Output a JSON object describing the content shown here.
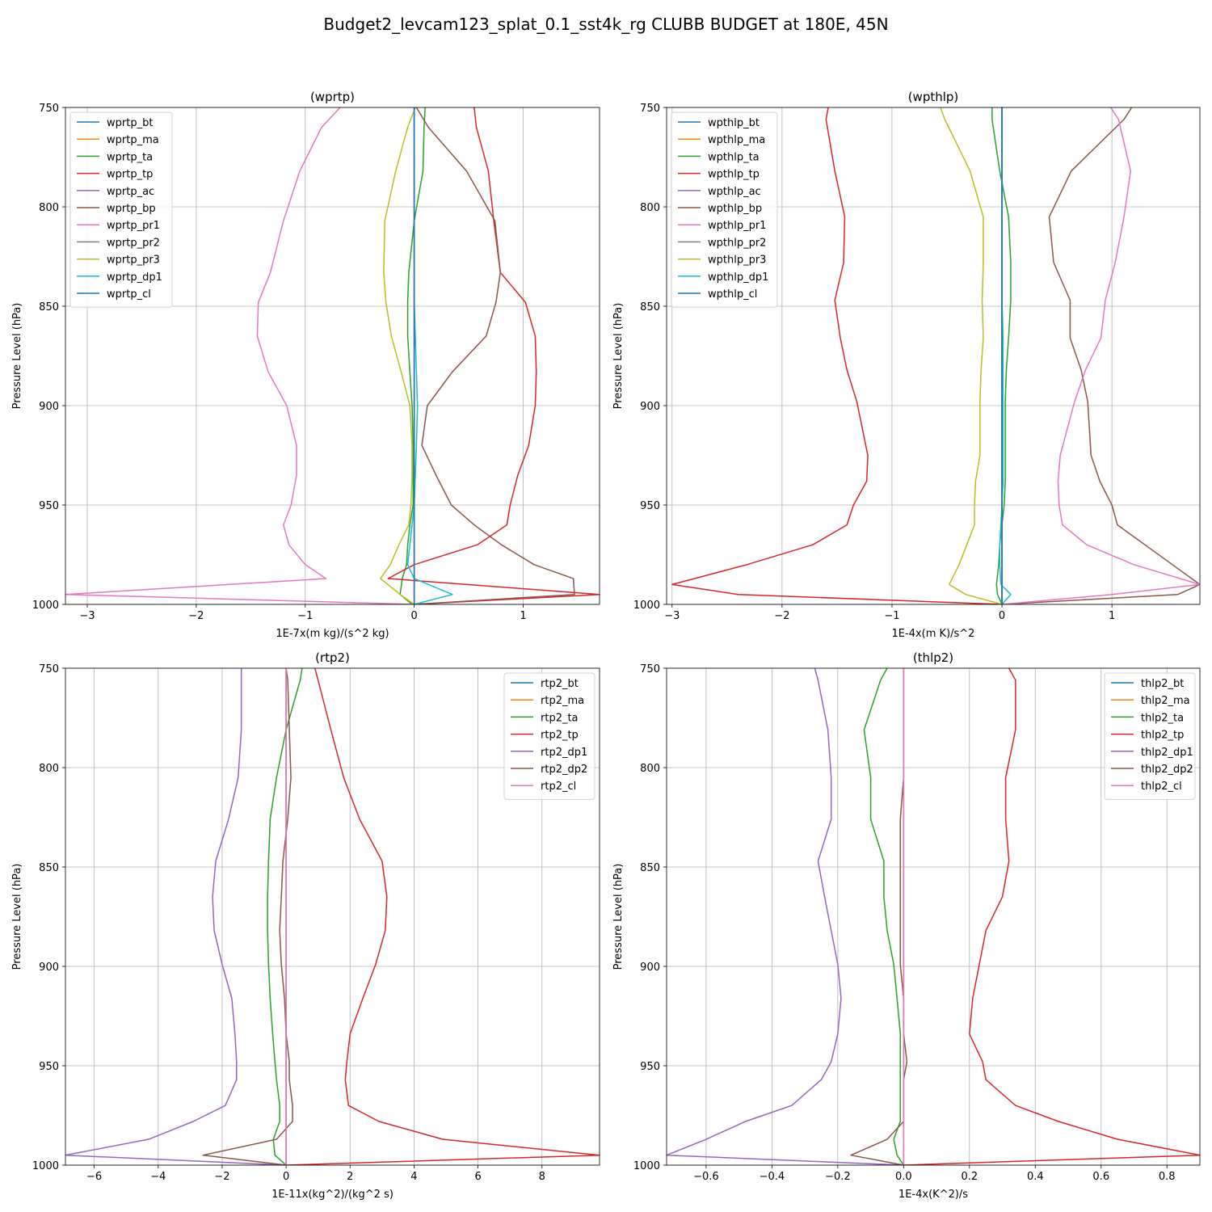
{
  "figure": {
    "suptitle": "Budget2_levcam123_splat_0.1_sst4k_rg CLUBB BUDGET at 180E, 45N",
    "colors": [
      "#1f77b4",
      "#ff7f0e",
      "#2ca02c",
      "#d62728",
      "#9467bd",
      "#8c564b",
      "#e377c2",
      "#7f7f7f",
      "#bcbd22",
      "#17becf"
    ]
  },
  "chart_data": [
    {
      "type": "line",
      "title": "(wprtp)",
      "xlabel": "1E-7x(m kg)/(s^2 kg)",
      "ylabel": "Pressure Level (hPa)",
      "xlim": [
        -3.2,
        1.7
      ],
      "ylim": [
        1000,
        750
      ],
      "xticks": [
        -3,
        -2,
        -1,
        0,
        1
      ],
      "xticklabels": [
        "−3",
        "−2",
        "−1",
        "0",
        "1"
      ],
      "yticks": [
        750,
        800,
        850,
        900,
        950,
        1000
      ],
      "grid": true,
      "legend_position": "top-left",
      "y": [
        750,
        760,
        782,
        807,
        833,
        848,
        865,
        883,
        900,
        920,
        935,
        950,
        960,
        970,
        980,
        987,
        995,
        1000
      ],
      "series": [
        {
          "name": "wprtp_bt",
          "color": "#1f77b4",
          "values": [
            0,
            0,
            0,
            0,
            0,
            0,
            0,
            0,
            0,
            0,
            0,
            0,
            0,
            0,
            0,
            0,
            0,
            0
          ]
        },
        {
          "name": "wprtp_ma",
          "color": "#ff7f0e",
          "values": [
            0,
            0,
            0,
            0,
            0,
            0,
            0,
            0,
            0,
            0,
            0,
            0,
            0,
            0,
            0,
            0,
            0,
            0
          ]
        },
        {
          "name": "wprtp_ta",
          "color": "#2ca02c",
          "values": [
            0.1,
            0.09,
            0.08,
            0.0,
            -0.05,
            -0.06,
            -0.06,
            -0.04,
            -0.02,
            -0.01,
            -0.01,
            -0.01,
            -0.04,
            -0.06,
            -0.07,
            -0.11,
            -0.13,
            -0.02
          ]
        },
        {
          "name": "wprtp_tp",
          "color": "#d62728",
          "values": [
            0.55,
            0.57,
            0.68,
            0.73,
            0.79,
            1.02,
            1.11,
            1.12,
            1.11,
            1.05,
            0.95,
            0.88,
            0.85,
            0.58,
            0.0,
            -0.24,
            1.7,
            0.0
          ]
        },
        {
          "name": "wprtp_ac",
          "color": "#9467bd",
          "values": [
            0,
            0,
            0,
            0,
            0,
            0,
            0,
            0,
            0,
            0,
            0,
            0,
            0,
            0,
            0,
            0,
            0,
            0
          ]
        },
        {
          "name": "wprtp_bp",
          "color": "#8c564b",
          "values": [
            0.02,
            0.13,
            0.48,
            0.74,
            0.79,
            0.75,
            0.66,
            0.35,
            0.12,
            0.07,
            0.2,
            0.34,
            0.55,
            0.8,
            1.1,
            1.46,
            1.47,
            0.0
          ]
        },
        {
          "name": "wprtp_pr1",
          "color": "#e377c2",
          "values": [
            -0.68,
            -0.85,
            -1.05,
            -1.2,
            -1.32,
            -1.43,
            -1.44,
            -1.34,
            -1.17,
            -1.08,
            -1.08,
            -1.13,
            -1.2,
            -1.15,
            -1.0,
            -0.81,
            -3.2,
            0.0
          ]
        },
        {
          "name": "wprtp_pr2",
          "color": "#7f7f7f",
          "values": [
            0,
            0,
            0,
            0,
            0,
            0,
            0,
            0,
            0,
            0,
            0,
            0,
            0,
            0,
            0,
            0,
            0,
            0
          ]
        },
        {
          "name": "wprtp_pr3",
          "color": "#bcbd22",
          "values": [
            0.01,
            -0.06,
            -0.17,
            -0.27,
            -0.28,
            -0.26,
            -0.21,
            -0.12,
            -0.04,
            -0.02,
            -0.02,
            -0.03,
            -0.05,
            -0.14,
            -0.22,
            -0.31,
            -0.13,
            0.0
          ]
        },
        {
          "name": "wprtp_dp1",
          "color": "#17becf",
          "values": [
            0.0,
            0.0,
            0.0,
            0.0,
            0.0,
            0.0,
            0.01,
            0.02,
            0.03,
            0.02,
            0.01,
            0.0,
            -0.02,
            -0.04,
            -0.06,
            0.0,
            0.35,
            0.0
          ]
        },
        {
          "name": "wprtp_cl",
          "color": "#1f77b4",
          "values": [
            0,
            0,
            0,
            0,
            0,
            0,
            0,
            0,
            0,
            0,
            0,
            0,
            0,
            0,
            0,
            0,
            0,
            0
          ]
        }
      ]
    },
    {
      "type": "line",
      "title": "(wpthlp)",
      "xlabel": "1E-4x(m K)/s^2",
      "ylabel": "Pressure Level (hPa)",
      "xlim": [
        -3.05,
        1.8
      ],
      "ylim": [
        1000,
        750
      ],
      "xticks": [
        -3,
        -2,
        -1,
        0,
        1
      ],
      "xticklabels": [
        "−3",
        "−2",
        "−1",
        "0",
        "1"
      ],
      "yticks": [
        750,
        800,
        850,
        900,
        950,
        1000
      ],
      "grid": true,
      "legend_position": "top-left",
      "y": [
        750,
        756,
        782,
        805,
        828,
        847,
        866,
        882,
        898,
        925,
        938,
        950,
        960,
        970,
        980,
        990,
        995,
        1000
      ],
      "series": [
        {
          "name": "wpthlp_bt",
          "color": "#1f77b4",
          "values": [
            0,
            0,
            0,
            0,
            0,
            0,
            0,
            0,
            0,
            0,
            0,
            0,
            0,
            0,
            0,
            0,
            0,
            0
          ]
        },
        {
          "name": "wpthlp_ma",
          "color": "#ff7f0e",
          "values": [
            0,
            0,
            0,
            0,
            0,
            0,
            0,
            0,
            0,
            0,
            0,
            0,
            0,
            0,
            0,
            0,
            0,
            0
          ]
        },
        {
          "name": "wpthlp_ta",
          "color": "#2ca02c",
          "values": [
            -0.09,
            -0.09,
            -0.02,
            0.06,
            0.08,
            0.08,
            0.06,
            0.04,
            0.03,
            0.03,
            0.03,
            0.02,
            0.0,
            -0.02,
            -0.03,
            -0.05,
            -0.04,
            0.0
          ]
        },
        {
          "name": "wpthlp_tp",
          "color": "#d62728",
          "values": [
            -1.58,
            -1.6,
            -1.52,
            -1.43,
            -1.44,
            -1.52,
            -1.47,
            -1.41,
            -1.32,
            -1.22,
            -1.23,
            -1.35,
            -1.41,
            -1.72,
            -2.32,
            -3.0,
            -2.4,
            0.0
          ]
        },
        {
          "name": "wpthlp_ac",
          "color": "#9467bd",
          "values": [
            0,
            0,
            0,
            0,
            0,
            0,
            0,
            0,
            0,
            0,
            0,
            0,
            0,
            0,
            0,
            0,
            0,
            0
          ]
        },
        {
          "name": "wpthlp_bp",
          "color": "#8c564b",
          "values": [
            1.18,
            1.11,
            0.63,
            0.43,
            0.47,
            0.62,
            0.62,
            0.72,
            0.78,
            0.81,
            0.89,
            1.0,
            1.05,
            1.3,
            1.55,
            1.8,
            1.6,
            0.0
          ]
        },
        {
          "name": "wpthlp_pr1",
          "color": "#e377c2",
          "values": [
            0.99,
            1.06,
            1.17,
            1.11,
            1.03,
            0.94,
            0.9,
            0.76,
            0.66,
            0.53,
            0.51,
            0.52,
            0.55,
            0.77,
            1.2,
            1.8,
            1.0,
            0.0
          ]
        },
        {
          "name": "wpthlp_pr2",
          "color": "#7f7f7f",
          "values": [
            0,
            0,
            0,
            0,
            0,
            0,
            0,
            0,
            0,
            0,
            0,
            0,
            0,
            0,
            0,
            0,
            0,
            0
          ]
        },
        {
          "name": "wpthlp_pr3",
          "color": "#bcbd22",
          "values": [
            -0.56,
            -0.52,
            -0.29,
            -0.17,
            -0.17,
            -0.18,
            -0.17,
            -0.19,
            -0.2,
            -0.2,
            -0.24,
            -0.25,
            -0.25,
            -0.32,
            -0.39,
            -0.48,
            -0.33,
            0.0
          ]
        },
        {
          "name": "wpthlp_dp1",
          "color": "#17becf",
          "values": [
            0.0,
            0.0,
            0.0,
            0.0,
            0.0,
            0.0,
            0.01,
            0.01,
            0.01,
            0.01,
            0.01,
            0.0,
            -0.01,
            -0.02,
            -0.02,
            -0.01,
            0.08,
            0.0
          ]
        },
        {
          "name": "wpthlp_cl",
          "color": "#1f77b4",
          "values": [
            0,
            0,
            0,
            0,
            0,
            0,
            0,
            0,
            0,
            0,
            0,
            0,
            0,
            0,
            0,
            0,
            0,
            0
          ]
        }
      ]
    },
    {
      "type": "line",
      "title": "(rtp2)",
      "xlabel": "1E-11x(kg^2)/(kg^2 s)",
      "ylabel": "Pressure Level (hPa)",
      "xlim": [
        -6.9,
        9.8
      ],
      "ylim": [
        1000,
        750
      ],
      "xticks": [
        -6,
        -4,
        -2,
        0,
        2,
        4,
        6,
        8
      ],
      "xticklabels": [
        "−6",
        "−4",
        "−2",
        "0",
        "2",
        "4",
        "6",
        "8"
      ],
      "yticks": [
        750,
        800,
        850,
        900,
        950,
        1000
      ],
      "grid": true,
      "legend_position": "top-right",
      "y": [
        750,
        756,
        781,
        805,
        826,
        847,
        865,
        882,
        899,
        916,
        934,
        948,
        957,
        970,
        978,
        987,
        995,
        1000
      ],
      "series": [
        {
          "name": "rtp2_bt",
          "color": "#1f77b4",
          "values": [
            0,
            0,
            0,
            0,
            0,
            0,
            0,
            0,
            0,
            0,
            0,
            0,
            0,
            0,
            0,
            0,
            0,
            0
          ]
        },
        {
          "name": "rtp2_ma",
          "color": "#ff7f0e",
          "values": [
            0,
            0,
            0,
            0,
            0,
            0,
            0,
            0,
            0,
            0,
            0,
            0,
            0,
            0,
            0,
            0,
            0,
            0
          ]
        },
        {
          "name": "rtp2_ta",
          "color": "#2ca02c",
          "values": [
            0.5,
            0.44,
            0.0,
            -0.3,
            -0.5,
            -0.55,
            -0.58,
            -0.58,
            -0.55,
            -0.5,
            -0.42,
            -0.35,
            -0.3,
            -0.2,
            -0.2,
            -0.4,
            -0.35,
            0.0
          ]
        },
        {
          "name": "rtp2_tp",
          "color": "#d62728",
          "values": [
            0.9,
            1.0,
            1.4,
            1.8,
            2.3,
            3.0,
            3.15,
            3.1,
            2.8,
            2.4,
            2.0,
            1.9,
            1.85,
            1.95,
            2.9,
            4.9,
            9.8,
            0.0
          ]
        },
        {
          "name": "rtp2_dp1",
          "color": "#9467bd",
          "values": [
            -1.4,
            -1.4,
            -1.4,
            -1.5,
            -1.8,
            -2.2,
            -2.3,
            -2.25,
            -2.0,
            -1.7,
            -1.6,
            -1.55,
            -1.55,
            -1.9,
            -2.9,
            -4.3,
            -6.9,
            0.0
          ]
        },
        {
          "name": "rtp2_dp2",
          "color": "#8c564b",
          "values": [
            0.0,
            0.05,
            0.1,
            0.15,
            0.05,
            -0.1,
            -0.15,
            -0.2,
            -0.15,
            -0.05,
            0.0,
            0.1,
            0.1,
            0.2,
            0.2,
            -0.3,
            -2.6,
            0.0
          ]
        },
        {
          "name": "rtp2_cl",
          "color": "#e377c2",
          "values": [
            0,
            0,
            0,
            0,
            0,
            0,
            0,
            0,
            0,
            0,
            0,
            0,
            0,
            0,
            0,
            0,
            0,
            0
          ]
        }
      ]
    },
    {
      "type": "line",
      "title": "(thlp2)",
      "xlabel": "1E-4x(K^2)/s",
      "ylabel": "Pressure Level (hPa)",
      "xlim": [
        -0.72,
        0.9
      ],
      "ylim": [
        1000,
        750
      ],
      "xticks": [
        -0.6,
        -0.4,
        -0.2,
        0.0,
        0.2,
        0.4,
        0.6,
        0.8
      ],
      "xticklabels": [
        "−0.6",
        "−0.4",
        "−0.2",
        "0.0",
        "0.2",
        "0.4",
        "0.6",
        "0.8"
      ],
      "yticks": [
        750,
        800,
        850,
        900,
        950,
        1000
      ],
      "grid": true,
      "legend_position": "top-right",
      "y": [
        750,
        756,
        781,
        805,
        826,
        847,
        865,
        882,
        899,
        916,
        934,
        948,
        957,
        970,
        978,
        987,
        995,
        1000
      ],
      "series": [
        {
          "name": "thlp2_bt",
          "color": "#1f77b4",
          "values": [
            0,
            0,
            0,
            0,
            0,
            0,
            0,
            0,
            0,
            0,
            0,
            0,
            0,
            0,
            0,
            0,
            0,
            0
          ]
        },
        {
          "name": "thlp2_ma",
          "color": "#ff7f0e",
          "values": [
            0,
            0,
            0,
            0,
            0,
            0,
            0,
            0,
            0,
            0,
            0,
            0,
            0,
            0,
            0,
            0,
            0,
            0
          ]
        },
        {
          "name": "thlp2_ta",
          "color": "#2ca02c",
          "values": [
            -0.05,
            -0.07,
            -0.12,
            -0.1,
            -0.1,
            -0.06,
            -0.06,
            -0.05,
            -0.03,
            -0.02,
            -0.01,
            -0.01,
            -0.01,
            -0.01,
            -0.01,
            -0.03,
            -0.02,
            0.0
          ]
        },
        {
          "name": "thlp2_tp",
          "color": "#d62728",
          "values": [
            0.32,
            0.34,
            0.34,
            0.31,
            0.31,
            0.32,
            0.3,
            0.25,
            0.23,
            0.21,
            0.2,
            0.24,
            0.25,
            0.34,
            0.47,
            0.65,
            0.9,
            0.0
          ]
        },
        {
          "name": "thlp2_dp1",
          "color": "#9467bd",
          "values": [
            -0.27,
            -0.26,
            -0.23,
            -0.22,
            -0.22,
            -0.26,
            -0.24,
            -0.22,
            -0.2,
            -0.19,
            -0.2,
            -0.22,
            -0.25,
            -0.34,
            -0.48,
            -0.6,
            -0.72,
            0.0
          ]
        },
        {
          "name": "thlp2_dp2",
          "color": "#8c564b",
          "values": [
            0.0,
            0.0,
            0.0,
            0.0,
            -0.01,
            -0.01,
            -0.01,
            -0.01,
            -0.01,
            0.0,
            0.0,
            0.01,
            0.0,
            0.0,
            0.0,
            -0.05,
            -0.16,
            0.0
          ]
        },
        {
          "name": "thlp2_cl",
          "color": "#e377c2",
          "values": [
            0,
            0,
            0,
            0,
            0,
            0,
            0,
            0,
            0,
            0,
            0,
            0,
            0,
            0,
            0,
            0,
            0,
            0
          ]
        }
      ]
    }
  ]
}
